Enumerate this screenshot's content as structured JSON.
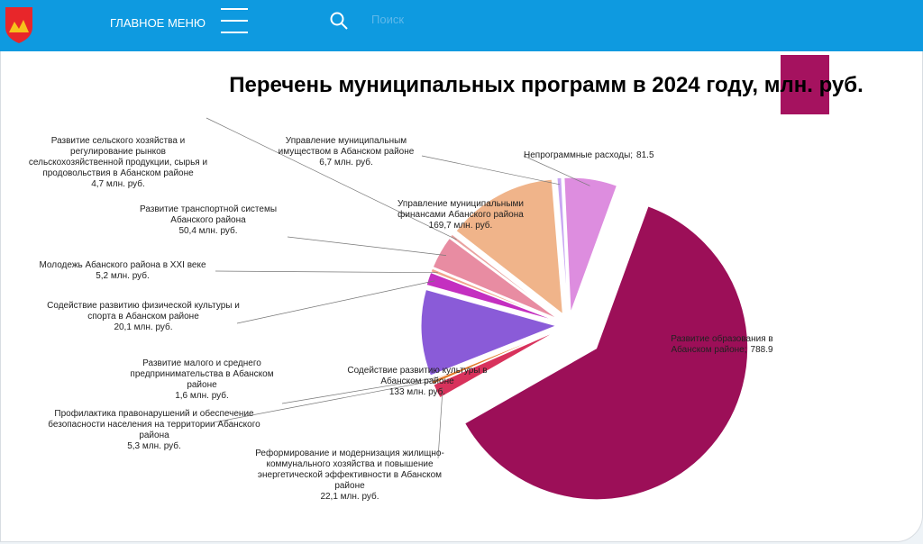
{
  "header": {
    "menu": "ГЛАВНОЕ МЕНЮ",
    "search_placeholder": "Поиск"
  },
  "chart_data": {
    "type": "pie",
    "title": "Перечень муниципальных программ в 2024 году, млн. руб.",
    "categories": [
      "Развитие образования в Абанском районе;",
      "Реформирование и модернизация жилищно-коммунального хозяйства и повышение энергетической эффективности в Абанском районе",
      "Профилактика правонарушений и обеспечение безопасности населения на территории Абанского района",
      "Развитие малого и среднего предпринимательства в Абанском районе",
      "Содействие развитию культуры в Абанском районе",
      "Содействие развитию физической культуры и спорта в Абанском районе",
      "Молодежь Абанского района в XXI веке",
      "Развитие транспортной системы Абанского района",
      "Развитие сельского хозяйства и регулирование рынков сельскохозяйственной продукции, сырья и продовольствия в Абанском районе",
      "Управление муниципальными финансами Абанского района",
      "Управление муниципальным имуществом в Абанском районе",
      "Непрограммные расходы;"
    ],
    "values": [
      788.9,
      22.1,
      5.3,
      1.6,
      133,
      20.1,
      5.2,
      50.4,
      4.7,
      169.7,
      6.7,
      81.5
    ],
    "value_labels": [
      "788.9",
      "22,1 млн. руб.",
      "5,3 млн. руб.",
      "1,6 млн. руб.",
      "133 млн. руб.",
      "20,1 млн. руб.",
      "5,2 млн. руб.",
      "50,4 млн. руб.",
      "4,7 млн. руб.",
      "169,7 млн. руб.",
      "6,7 млн. руб.",
      "81.5"
    ],
    "colors": [
      "#9c0f58",
      "#d8325c",
      "#e27b2c",
      "#b9521f",
      "#8a5bd8",
      "#c42fc0",
      "#f2a48e",
      "#e88ca2",
      "#e9a2a0",
      "#f0b48a",
      "#c8a6f2",
      "#dd8ddf"
    ]
  }
}
